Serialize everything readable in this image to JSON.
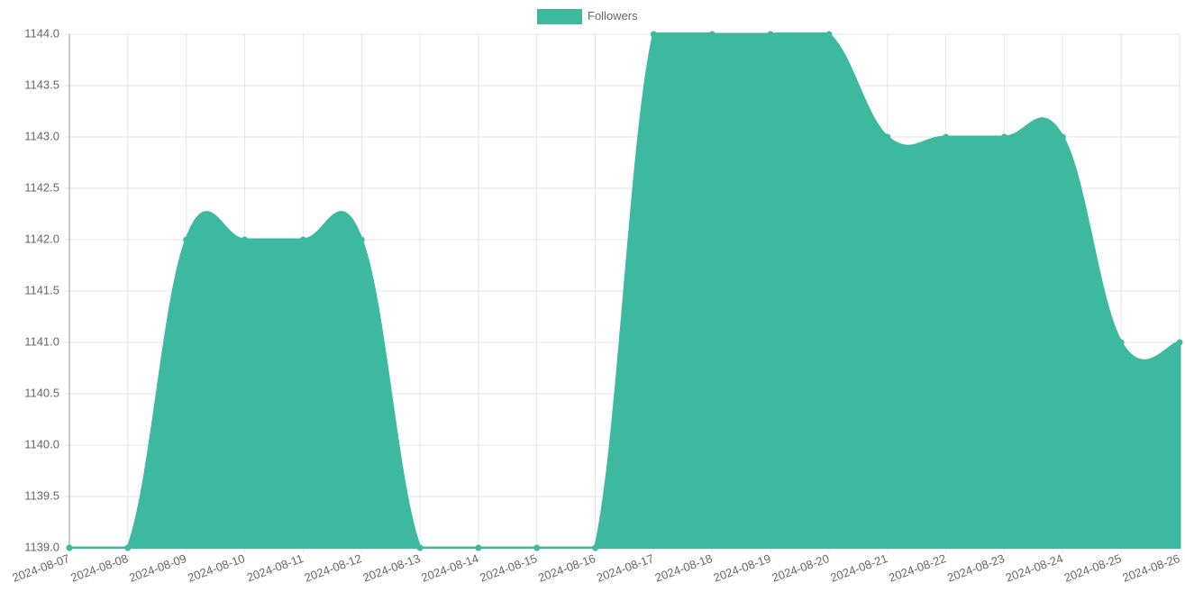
{
  "chart_data": {
    "type": "area",
    "x": [
      "2024-08-07",
      "2024-08-08",
      "2024-08-09",
      "2024-08-10",
      "2024-08-11",
      "2024-08-12",
      "2024-08-13",
      "2024-08-14",
      "2024-08-15",
      "2024-08-16",
      "2024-08-17",
      "2024-08-18",
      "2024-08-19",
      "2024-08-20",
      "2024-08-21",
      "2024-08-22",
      "2024-08-23",
      "2024-08-24",
      "2024-08-25",
      "2024-08-26"
    ],
    "series": [
      {
        "name": "Followers",
        "color": "#3cb99e",
        "values": [
          1139,
          1139,
          1142,
          1142,
          1142,
          1142,
          1139,
          1139,
          1139,
          1139,
          1144,
          1144,
          1144,
          1144,
          1143,
          1143,
          1143,
          1143,
          1141,
          1141
        ]
      }
    ],
    "ylim": [
      1139,
      1144
    ],
    "yticks": [
      {
        "value": 1139,
        "label": "1139.0"
      },
      1139.5,
      {
        "value": 1140,
        "label": "1140.0"
      },
      1140.5,
      {
        "value": 1141,
        "label": "1141.0"
      },
      1141.5,
      {
        "value": 1142,
        "label": "1142.0"
      },
      1142.5,
      {
        "value": 1143,
        "label": "1143.0"
      },
      1143.5,
      {
        "value": 1144,
        "label": "1144.0"
      }
    ],
    "grid": true,
    "legend": "top"
  }
}
